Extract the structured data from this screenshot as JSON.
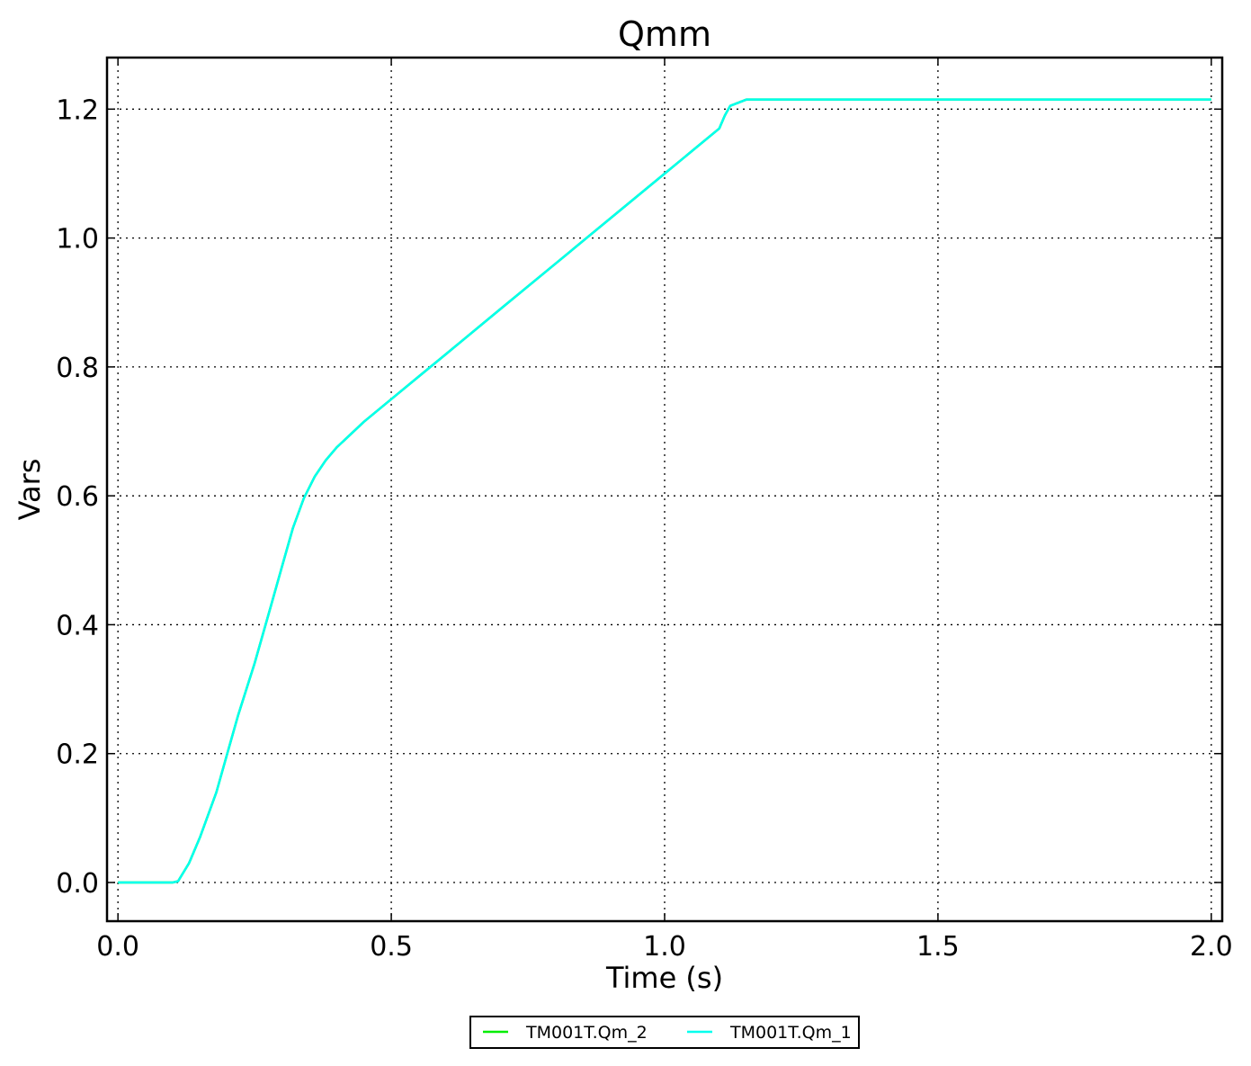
{
  "chart_data": {
    "type": "line",
    "title": "Qmm",
    "xlabel": "Time (s)",
    "ylabel": "Vars",
    "xlim": [
      -0.02,
      2.02
    ],
    "ylim": [
      -0.06,
      1.28
    ],
    "xticks": [
      0.0,
      0.5,
      1.0,
      1.5,
      2.0
    ],
    "xtick_labels": [
      "0.0",
      "0.5",
      "1.0",
      "1.5",
      "2.0"
    ],
    "yticks": [
      0.0,
      0.2,
      0.4,
      0.6,
      0.8,
      1.0,
      1.2
    ],
    "ytick_labels": [
      "0.0",
      "0.2",
      "0.4",
      "0.6",
      "0.8",
      "1.0",
      "1.2"
    ],
    "grid": true,
    "legend_position": "bottom-center",
    "series": [
      {
        "name": "TM001T.Qm_2",
        "color": "#00ee00",
        "x": [
          0.0,
          0.05,
          0.1,
          0.11,
          0.13,
          0.15,
          0.18,
          0.2,
          0.22,
          0.25,
          0.28,
          0.3,
          0.32,
          0.34,
          0.36,
          0.38,
          0.4,
          0.45,
          0.5,
          0.55,
          0.6,
          0.7,
          0.8,
          0.9,
          1.0,
          1.05,
          1.1,
          1.11,
          1.12,
          1.15,
          1.2,
          1.5,
          2.0
        ],
        "y": [
          0.0,
          0.0,
          0.0,
          0.002,
          0.03,
          0.07,
          0.14,
          0.2,
          0.26,
          0.34,
          0.43,
          0.49,
          0.55,
          0.596,
          0.63,
          0.655,
          0.675,
          0.715,
          0.75,
          0.785,
          0.82,
          0.89,
          0.96,
          1.03,
          1.1,
          1.135,
          1.17,
          1.19,
          1.205,
          1.215,
          1.215,
          1.215,
          1.215
        ]
      },
      {
        "name": "TM001T.Qm_1",
        "color": "#00ffee",
        "x": [
          0.0,
          0.05,
          0.1,
          0.11,
          0.13,
          0.15,
          0.18,
          0.2,
          0.22,
          0.25,
          0.28,
          0.3,
          0.32,
          0.34,
          0.36,
          0.38,
          0.4,
          0.45,
          0.5,
          0.55,
          0.6,
          0.7,
          0.8,
          0.9,
          1.0,
          1.05,
          1.1,
          1.11,
          1.12,
          1.15,
          1.2,
          1.5,
          2.0
        ],
        "y": [
          0.0,
          0.0,
          0.0,
          0.002,
          0.03,
          0.07,
          0.14,
          0.2,
          0.26,
          0.34,
          0.43,
          0.49,
          0.55,
          0.596,
          0.63,
          0.655,
          0.675,
          0.715,
          0.75,
          0.785,
          0.82,
          0.89,
          0.96,
          1.03,
          1.1,
          1.135,
          1.17,
          1.19,
          1.205,
          1.215,
          1.215,
          1.215,
          1.215
        ]
      }
    ]
  }
}
